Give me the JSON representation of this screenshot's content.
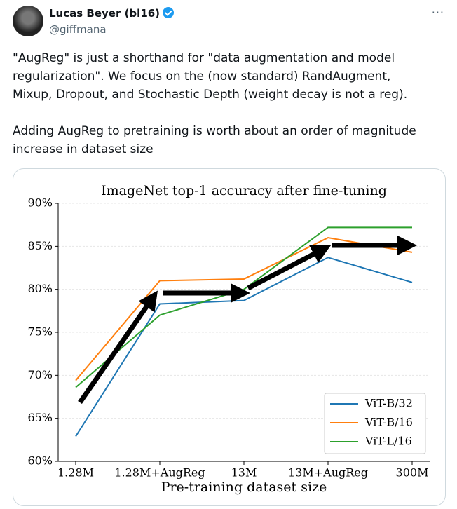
{
  "post": {
    "author": "Lucas Beyer (bl16)",
    "handle": "@giffmana",
    "paragraphs": [
      "\"AugReg\" is just a shorthand for \"data augmentation and model regularization\". We focus on the (now standard) RandAugment, Mixup, Dropout, and Stochastic Depth (weight decay is not a reg).",
      "Adding AugReg to pretraining is worth about an order of magnitude increase in dataset size"
    ]
  },
  "chart_data": {
    "type": "line",
    "title": "ImageNet top-1 accuracy after fine-tuning",
    "x_label": "Pre-training dataset size",
    "categories": [
      "1.28M",
      "1.28M+AugReg",
      "13M",
      "13M+AugReg",
      "300M"
    ],
    "series": [
      {
        "name": "ViT-B/32",
        "color": "#1f77b4",
        "values": [
          62.9,
          78.3,
          78.7,
          83.7,
          80.8
        ]
      },
      {
        "name": "ViT-B/16",
        "color": "#ff7f0e",
        "values": [
          69.4,
          81.0,
          81.2,
          86.0,
          84.3
        ]
      },
      {
        "name": "ViT-L/16",
        "color": "#2ca02c",
        "values": [
          68.6,
          77.0,
          80.0,
          87.2,
          87.2
        ]
      }
    ],
    "ylim": [
      60,
      90
    ],
    "yticks": [
      {
        "value": 60,
        "label": "60%"
      },
      {
        "value": 65,
        "label": "65%"
      },
      {
        "value": 70,
        "label": "70%"
      },
      {
        "value": 75,
        "label": "75%"
      },
      {
        "value": 80,
        "label": "80%"
      },
      {
        "value": 85,
        "label": "85%"
      },
      {
        "value": 90,
        "label": "90%"
      }
    ],
    "grid": true,
    "legend": "lower right"
  }
}
